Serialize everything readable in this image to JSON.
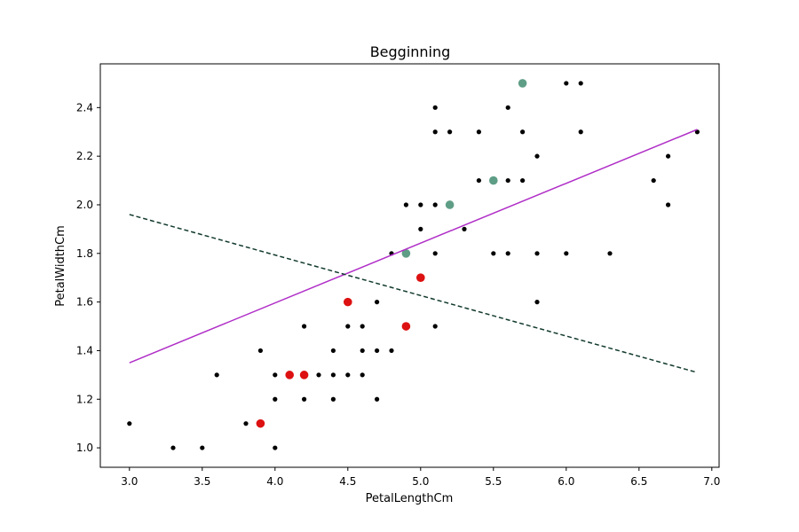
{
  "chart_data": {
    "type": "scatter",
    "title": "Begginning",
    "xlabel": "PetalLengthCm",
    "ylabel": "PetalWidthCm",
    "xlim": [
      2.8,
      7.05
    ],
    "ylim": [
      0.92,
      2.58
    ],
    "xticks": [
      "3.0",
      "3.5",
      "4.0",
      "4.5",
      "5.0",
      "5.5",
      "6.0",
      "6.5",
      "7.0"
    ],
    "yticks": [
      "1.0",
      "1.2",
      "1.4",
      "1.6",
      "1.8",
      "2.0",
      "2.2",
      "2.4"
    ],
    "grid": false,
    "series": [
      {
        "color": "#000000",
        "marker_size": "small",
        "points": [
          [
            3.0,
            1.1
          ],
          [
            3.3,
            1.0
          ],
          [
            3.5,
            1.0
          ],
          [
            3.6,
            1.3
          ],
          [
            3.8,
            1.1
          ],
          [
            3.9,
            1.4
          ],
          [
            4.0,
            1.0
          ],
          [
            4.0,
            1.2
          ],
          [
            4.0,
            1.3
          ],
          [
            4.2,
            1.2
          ],
          [
            4.2,
            1.5
          ],
          [
            4.3,
            1.3
          ],
          [
            4.4,
            1.2
          ],
          [
            4.4,
            1.3
          ],
          [
            4.4,
            1.4
          ],
          [
            4.5,
            1.3
          ],
          [
            4.5,
            1.5
          ],
          [
            4.6,
            1.3
          ],
          [
            4.6,
            1.4
          ],
          [
            4.6,
            1.5
          ],
          [
            4.7,
            1.2
          ],
          [
            4.7,
            1.4
          ],
          [
            4.7,
            1.6
          ],
          [
            4.8,
            1.4
          ],
          [
            4.8,
            1.8
          ],
          [
            4.9,
            1.8
          ],
          [
            4.9,
            2.0
          ],
          [
            5.0,
            1.9
          ],
          [
            5.0,
            2.0
          ],
          [
            5.1,
            1.5
          ],
          [
            5.1,
            1.8
          ],
          [
            5.1,
            2.0
          ],
          [
            5.1,
            2.3
          ],
          [
            5.1,
            2.4
          ],
          [
            5.2,
            2.3
          ],
          [
            5.3,
            1.9
          ],
          [
            5.4,
            2.1
          ],
          [
            5.4,
            2.3
          ],
          [
            5.5,
            1.8
          ],
          [
            5.6,
            1.8
          ],
          [
            5.6,
            2.1
          ],
          [
            5.6,
            2.4
          ],
          [
            5.7,
            2.1
          ],
          [
            5.7,
            2.3
          ],
          [
            5.8,
            1.6
          ],
          [
            5.8,
            1.8
          ],
          [
            5.8,
            2.2
          ],
          [
            6.0,
            1.8
          ],
          [
            6.0,
            2.5
          ],
          [
            6.1,
            2.3
          ],
          [
            6.1,
            2.5
          ],
          [
            6.3,
            1.8
          ],
          [
            6.6,
            2.1
          ],
          [
            6.7,
            2.0
          ],
          [
            6.7,
            2.2
          ],
          [
            6.9,
            2.3
          ]
        ]
      },
      {
        "color": "#dd1111",
        "marker_size": "large",
        "points": [
          [
            3.9,
            1.1
          ],
          [
            4.1,
            1.3
          ],
          [
            4.2,
            1.3
          ],
          [
            4.5,
            1.6
          ],
          [
            4.9,
            1.5
          ],
          [
            5.0,
            1.7
          ]
        ]
      },
      {
        "color": "#5f9e86",
        "marker_size": "large",
        "points": [
          [
            4.9,
            1.8
          ],
          [
            5.2,
            2.0
          ],
          [
            5.5,
            2.1
          ],
          [
            5.7,
            2.5
          ]
        ]
      }
    ],
    "lines": [
      {
        "color": "#b02ec7",
        "style": "solid",
        "x": [
          3.0,
          6.9
        ],
        "y": [
          1.35,
          2.31
        ]
      },
      {
        "color": "#123a2e",
        "style": "dashed",
        "x": [
          3.0,
          6.9
        ],
        "y": [
          1.96,
          1.31
        ]
      }
    ]
  }
}
